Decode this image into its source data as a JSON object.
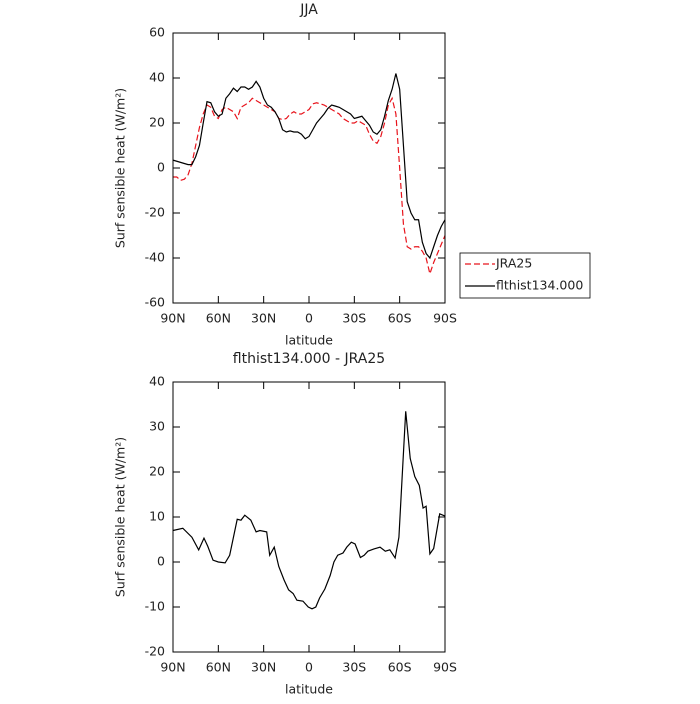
{
  "chart_data": [
    {
      "type": "line",
      "title": "JJA",
      "xlabel": "latitude",
      "ylabel": "Surf sensible heat (W/m²)",
      "xlim": [
        90,
        -90
      ],
      "xticks": [
        {
          "value": 90,
          "label": "90N"
        },
        {
          "value": 60,
          "label": "60N"
        },
        {
          "value": 30,
          "label": "30N"
        },
        0,
        {
          "value": -30,
          "label": "30S"
        },
        {
          "value": -60,
          "label": "60S"
        },
        {
          "value": -90,
          "label": "90S"
        }
      ],
      "ylim": [
        -60,
        60
      ],
      "yticks": [
        -60,
        -40,
        -20,
        0,
        20,
        40,
        60
      ],
      "legend": "right",
      "x": [
        90,
        87.5,
        85,
        82.5,
        80,
        77.5,
        75,
        72.5,
        70,
        67.5,
        65,
        62.5,
        60,
        57.5,
        55,
        52.5,
        50,
        47.5,
        45,
        42.5,
        40,
        37.5,
        35,
        32.5,
        30,
        27.5,
        25,
        22.5,
        20,
        17.5,
        15,
        12.5,
        10,
        7.5,
        5,
        2.5,
        0,
        -2.5,
        -5,
        -7.5,
        -10,
        -12.5,
        -15,
        -17.5,
        -20,
        -22.5,
        -25,
        -27.5,
        -30,
        -32.5,
        -35,
        -37.5,
        -40,
        -42.5,
        -45,
        -47.5,
        -50,
        -52.5,
        -55,
        -57.5,
        -60,
        -62.5,
        -65,
        -67.5,
        -70,
        -72.5,
        -75,
        -77.5,
        -80,
        -82.5,
        -85,
        -87.5,
        -90
      ],
      "series": [
        {
          "name": "JRA25",
          "color": "#e8141c",
          "dash": true,
          "values": [
            -4,
            -4,
            -5.5,
            -5,
            -3,
            2,
            10,
            18,
            24,
            28,
            27,
            23,
            22,
            26,
            27,
            26,
            25,
            22,
            27,
            28,
            29,
            31,
            30,
            29,
            28,
            27,
            26,
            25,
            22,
            21.5,
            22,
            24,
            25,
            24,
            24,
            25,
            26,
            28.5,
            29,
            28.5,
            28,
            27,
            26,
            25,
            24,
            22,
            21,
            20,
            20,
            21,
            20,
            19,
            15,
            12,
            11,
            14,
            20,
            28,
            31,
            24,
            0,
            -25,
            -35,
            -36,
            -35,
            -35,
            -37,
            -40,
            -47,
            -42,
            -38,
            -34,
            -30
          ]
        },
        {
          "name": "flthist134.000",
          "color": "#000000",
          "dash": false,
          "values": [
            3.5,
            3,
            2.5,
            2,
            1.5,
            1.5,
            5,
            10,
            20,
            29.5,
            29,
            25,
            23,
            24,
            31,
            33,
            35.5,
            34,
            36,
            36,
            35,
            36,
            38.5,
            36,
            31,
            28,
            27,
            25,
            22,
            17,
            16,
            16.5,
            16,
            16,
            15,
            13,
            14,
            17,
            20,
            22,
            24,
            26.5,
            28,
            27.5,
            27,
            26,
            25,
            24,
            22,
            22.5,
            23,
            21,
            19,
            16,
            15,
            17,
            23,
            30,
            35,
            42,
            35,
            10,
            -15,
            -20,
            -23,
            -23,
            -33,
            -38,
            -40,
            -35,
            -30,
            -26,
            -23
          ]
        }
      ]
    },
    {
      "type": "line",
      "title": "flthist134.000 - JRA25",
      "xlabel": "latitude",
      "ylabel": "Surf sensible heat (W/m²)",
      "xlim": [
        90,
        -90
      ],
      "xticks": [
        {
          "value": 90,
          "label": "90N"
        },
        {
          "value": 60,
          "label": "60N"
        },
        {
          "value": 30,
          "label": "30N"
        },
        0,
        {
          "value": -30,
          "label": "30S"
        },
        {
          "value": -60,
          "label": "60S"
        },
        {
          "value": -90,
          "label": "90S"
        }
      ],
      "ylim": [
        -20,
        40
      ],
      "yticks": [
        -20,
        -10,
        0,
        10,
        20,
        30,
        40
      ],
      "color": "#000000",
      "x": [
        90,
        83.5,
        77.5,
        73,
        69.5,
        67,
        63.5,
        60,
        55.5,
        52.5,
        47.5,
        45,
        42.5,
        38.5,
        35,
        32.5,
        28,
        26,
        23,
        20,
        16.5,
        13.5,
        10.5,
        8,
        4,
        0.5,
        -2,
        -4.5,
        -7,
        -10.5,
        -14,
        -16.5,
        -19,
        -22.5,
        -25,
        -28,
        -30.5,
        -34,
        -36.5,
        -39,
        -43,
        -47,
        -50.5,
        -53.5,
        -57,
        -59.5,
        -61.5,
        -64,
        -67,
        -70,
        -73,
        -75.5,
        -77.5,
        -80,
        -82.5,
        -86.5,
        -90
      ],
      "values": [
        7,
        7.5,
        5.5,
        2.7,
        5.3,
        3.5,
        0.4,
        0,
        -0.2,
        1.5,
        9.5,
        9.3,
        10.4,
        9.3,
        6.7,
        7,
        6.7,
        1.5,
        3.3,
        -1,
        -4,
        -6.2,
        -7,
        -8.5,
        -8.7,
        -10,
        -10.4,
        -10,
        -8,
        -6,
        -3,
        0,
        1.5,
        2,
        3.3,
        4.4,
        4,
        1,
        1.5,
        2.4,
        2.9,
        3.3,
        2.4,
        2.7,
        0.9,
        5.5,
        18,
        33.5,
        23,
        19,
        17,
        12,
        12.4,
        1.8,
        3,
        10.7,
        10.2
      ]
    }
  ]
}
